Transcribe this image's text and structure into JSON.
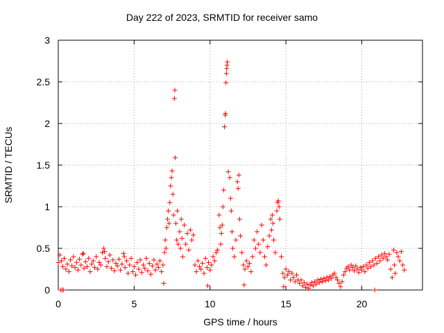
{
  "chart_data": {
    "type": "scatter",
    "title": "Day 222 of 2023, SRMTID for receiver samo",
    "xlabel": "GPS time / hours",
    "ylabel": "SRMTID / TECUs",
    "xlim": [
      0,
      24
    ],
    "ylim": [
      0,
      3
    ],
    "x_ticks": [
      0,
      5,
      10,
      15,
      20
    ],
    "y_ticks": [
      0,
      0.5,
      1,
      1.5,
      2,
      2.5,
      3
    ],
    "y_tick_labels": [
      "0",
      "0.5",
      "1",
      "1.5",
      "2",
      "2.5",
      "3"
    ],
    "grid": true,
    "marker": "+",
    "series": [
      {
        "name": "SRMTID",
        "color": "#ff0000",
        "points": [
          [
            0.0,
            0.33
          ],
          [
            0.1,
            0.42
          ],
          [
            0.2,
            0.35
          ],
          [
            0.3,
            0.28
          ],
          [
            0.4,
            0.38
          ],
          [
            0.5,
            0.25
          ],
          [
            0.6,
            0.31
          ],
          [
            0.7,
            0.22
          ],
          [
            0.8,
            0.36
          ],
          [
            0.9,
            0.29
          ],
          [
            1.0,
            0.4
          ],
          [
            1.1,
            0.27
          ],
          [
            1.2,
            0.33
          ],
          [
            1.3,
            0.24
          ],
          [
            1.4,
            0.37
          ],
          [
            1.5,
            0.3
          ],
          [
            1.6,
            0.43
          ],
          [
            1.7,
            0.26
          ],
          [
            1.8,
            0.34
          ],
          [
            1.9,
            0.28
          ],
          [
            2.0,
            0.38
          ],
          [
            2.1,
            0.22
          ],
          [
            2.2,
            0.31
          ],
          [
            2.3,
            0.35
          ],
          [
            2.4,
            0.27
          ],
          [
            2.5,
            0.4
          ],
          [
            2.6,
            0.25
          ],
          [
            2.7,
            0.33
          ],
          [
            2.8,
            0.3
          ],
          [
            2.9,
            0.45
          ],
          [
            3.0,
            0.5
          ],
          [
            3.1,
            0.38
          ],
          [
            3.2,
            0.28
          ],
          [
            3.3,
            0.34
          ],
          [
            3.4,
            0.42
          ],
          [
            3.5,
            0.26
          ],
          [
            3.6,
            0.36
          ],
          [
            3.7,
            0.23
          ],
          [
            3.8,
            0.32
          ],
          [
            3.9,
            0.29
          ],
          [
            4.0,
            0.37
          ],
          [
            4.1,
            0.24
          ],
          [
            4.2,
            0.31
          ],
          [
            4.3,
            0.44
          ],
          [
            4.4,
            0.27
          ],
          [
            4.5,
            0.35
          ],
          [
            4.6,
            0.2
          ],
          [
            4.7,
            0.3
          ],
          [
            4.8,
            0.38
          ],
          [
            4.9,
            0.22
          ],
          [
            5.0,
            0.28
          ],
          [
            5.1,
            0.18
          ],
          [
            5.2,
            0.33
          ],
          [
            5.3,
            0.25
          ],
          [
            5.4,
            0.36
          ],
          [
            5.5,
            0.21
          ],
          [
            5.6,
            0.3
          ],
          [
            5.7,
            0.26
          ],
          [
            5.8,
            0.38
          ],
          [
            5.9,
            0.23
          ],
          [
            6.0,
            0.32
          ],
          [
            6.1,
            0.19
          ],
          [
            6.2,
            0.29
          ],
          [
            6.3,
            0.36
          ],
          [
            6.4,
            0.24
          ],
          [
            6.5,
            0.31
          ],
          [
            6.6,
            0.27
          ],
          [
            6.7,
            0.35
          ],
          [
            6.8,
            0.22
          ],
          [
            6.9,
            0.3
          ],
          [
            7.0,
            0.45
          ],
          [
            7.05,
            0.6
          ],
          [
            7.1,
            0.5
          ],
          [
            7.15,
            0.75
          ],
          [
            7.2,
            0.85
          ],
          [
            7.25,
            0.95
          ],
          [
            7.3,
            0.8
          ],
          [
            7.35,
            1.05
          ],
          [
            7.4,
            1.25
          ],
          [
            7.45,
            1.35
          ],
          [
            7.5,
            1.43
          ],
          [
            7.55,
            1.15
          ],
          [
            7.6,
            0.9
          ],
          [
            7.65,
            2.3
          ],
          [
            7.68,
            2.4
          ],
          [
            7.7,
            1.59
          ],
          [
            7.75,
            0.8
          ],
          [
            7.8,
            0.6
          ],
          [
            7.85,
            0.95
          ],
          [
            7.9,
            0.55
          ],
          [
            8.0,
            0.7
          ],
          [
            8.05,
            0.5
          ],
          [
            8.1,
            0.85
          ],
          [
            8.15,
            0.62
          ],
          [
            8.2,
            0.4
          ],
          [
            8.3,
            0.78
          ],
          [
            8.4,
            0.55
          ],
          [
            8.5,
            0.68
          ],
          [
            8.6,
            0.48
          ],
          [
            8.7,
            0.72
          ],
          [
            8.8,
            0.6
          ],
          [
            8.9,
            0.66
          ],
          [
            9.0,
            0.3
          ],
          [
            9.1,
            0.22
          ],
          [
            9.2,
            0.35
          ],
          [
            9.3,
            0.28
          ],
          [
            9.4,
            0.25
          ],
          [
            9.5,
            0.32
          ],
          [
            9.6,
            0.2
          ],
          [
            9.7,
            0.38
          ],
          [
            9.8,
            0.27
          ],
          [
            9.9,
            0.33
          ],
          [
            10.0,
            0.24
          ],
          [
            10.1,
            0.3
          ],
          [
            10.2,
            0.4
          ],
          [
            10.3,
            0.35
          ],
          [
            10.4,
            0.45
          ],
          [
            10.5,
            0.48
          ],
          [
            10.6,
            0.9
          ],
          [
            10.65,
            0.75
          ],
          [
            10.7,
            0.55
          ],
          [
            10.75,
            0.68
          ],
          [
            10.8,
            0.78
          ],
          [
            10.85,
            1.0
          ],
          [
            10.9,
            1.2
          ],
          [
            10.95,
            1.96
          ],
          [
            11.0,
            2.1
          ],
          [
            11.02,
            2.12
          ],
          [
            11.05,
            2.49
          ],
          [
            11.08,
            2.6
          ],
          [
            11.1,
            2.66
          ],
          [
            11.12,
            2.7
          ],
          [
            11.14,
            2.74
          ],
          [
            11.2,
            1.42
          ],
          [
            11.3,
            1.35
          ],
          [
            11.35,
            1.1
          ],
          [
            11.4,
            0.95
          ],
          [
            11.45,
            0.7
          ],
          [
            11.5,
            0.5
          ],
          [
            11.6,
            0.4
          ],
          [
            11.7,
            0.6
          ],
          [
            11.8,
            1.3
          ],
          [
            11.85,
            1.22
          ],
          [
            11.9,
            1.38
          ],
          [
            11.95,
            0.85
          ],
          [
            12.0,
            0.65
          ],
          [
            12.1,
            0.45
          ],
          [
            12.2,
            0.3
          ],
          [
            12.3,
            0.25
          ],
          [
            12.4,
            0.35
          ],
          [
            12.5,
            0.28
          ],
          [
            12.6,
            0.32
          ],
          [
            12.7,
            0.22
          ],
          [
            12.8,
            0.4
          ],
          [
            12.9,
            0.6
          ],
          [
            13.0,
            0.5
          ],
          [
            13.1,
            0.7
          ],
          [
            13.2,
            0.55
          ],
          [
            13.3,
            0.45
          ],
          [
            13.4,
            0.78
          ],
          [
            13.5,
            0.6
          ],
          [
            13.6,
            0.4
          ],
          [
            13.7,
            0.3
          ],
          [
            13.8,
            0.52
          ],
          [
            13.9,
            0.65
          ],
          [
            14.0,
            0.85
          ],
          [
            14.05,
            0.72
          ],
          [
            14.1,
            0.9
          ],
          [
            14.15,
            0.8
          ],
          [
            14.2,
            0.6
          ],
          [
            14.3,
            0.45
          ],
          [
            14.4,
            0.95
          ],
          [
            14.45,
            1.05
          ],
          [
            14.5,
            1.07
          ],
          [
            14.55,
            1.0
          ],
          [
            14.6,
            0.85
          ],
          [
            14.7,
            0.4
          ],
          [
            14.8,
            0.2
          ],
          [
            14.9,
            0.15
          ],
          [
            15.0,
            0.25
          ],
          [
            15.1,
            0.18
          ],
          [
            15.2,
            0.22
          ],
          [
            15.3,
            0.12
          ],
          [
            15.4,
            0.2
          ],
          [
            15.5,
            0.15
          ],
          [
            15.6,
            0.1
          ],
          [
            15.7,
            0.18
          ],
          [
            15.8,
            0.12
          ],
          [
            15.9,
            0.08
          ],
          [
            16.0,
            0.12
          ],
          [
            16.1,
            0.05
          ],
          [
            16.2,
            0.09
          ],
          [
            16.3,
            0.03
          ],
          [
            16.4,
            0.07
          ],
          [
            16.5,
            0.02
          ],
          [
            16.6,
            0.06
          ],
          [
            16.7,
            0.09
          ],
          [
            16.8,
            0.05
          ],
          [
            16.9,
            0.1
          ],
          [
            17.0,
            0.07
          ],
          [
            17.1,
            0.12
          ],
          [
            17.2,
            0.09
          ],
          [
            17.3,
            0.13
          ],
          [
            17.4,
            0.1
          ],
          [
            17.5,
            0.14
          ],
          [
            17.6,
            0.11
          ],
          [
            17.7,
            0.15
          ],
          [
            17.8,
            0.12
          ],
          [
            17.9,
            0.16
          ],
          [
            18.0,
            0.14
          ],
          [
            18.1,
            0.18
          ],
          [
            18.2,
            0.2
          ],
          [
            18.3,
            0.15
          ],
          [
            18.4,
            0.12
          ],
          [
            18.5,
            0.08
          ],
          [
            18.6,
            0.04
          ],
          [
            18.7,
            0.1
          ],
          [
            18.8,
            0.18
          ],
          [
            18.9,
            0.22
          ],
          [
            19.0,
            0.26
          ],
          [
            19.1,
            0.28
          ],
          [
            19.2,
            0.24
          ],
          [
            19.3,
            0.3
          ],
          [
            19.4,
            0.27
          ],
          [
            19.5,
            0.23
          ],
          [
            19.6,
            0.29
          ],
          [
            19.7,
            0.25
          ],
          [
            19.8,
            0.21
          ],
          [
            19.9,
            0.27
          ],
          [
            20.0,
            0.24
          ],
          [
            20.1,
            0.28
          ],
          [
            20.2,
            0.22
          ],
          [
            20.3,
            0.3
          ],
          [
            20.4,
            0.26
          ],
          [
            20.5,
            0.33
          ],
          [
            20.6,
            0.28
          ],
          [
            20.7,
            0.35
          ],
          [
            20.8,
            0.3
          ],
          [
            20.85,
            0.0
          ],
          [
            20.9,
            0.38
          ],
          [
            21.0,
            0.32
          ],
          [
            21.1,
            0.4
          ],
          [
            21.2,
            0.35
          ],
          [
            21.3,
            0.42
          ],
          [
            21.4,
            0.38
          ],
          [
            21.5,
            0.44
          ],
          [
            21.6,
            0.4
          ],
          [
            21.7,
            0.36
          ],
          [
            21.8,
            0.43
          ],
          [
            21.9,
            0.25
          ],
          [
            22.0,
            0.15
          ],
          [
            22.1,
            0.48
          ],
          [
            22.15,
            0.3
          ],
          [
            22.2,
            0.2
          ],
          [
            22.3,
            0.45
          ],
          [
            22.4,
            0.4
          ],
          [
            22.5,
            0.35
          ],
          [
            22.6,
            0.46
          ],
          [
            22.7,
            0.3
          ],
          [
            22.8,
            0.24
          ],
          [
            0.15,
            0.0
          ],
          [
            0.25,
            0.0
          ],
          [
            0.35,
            0.0
          ],
          [
            6.95,
            0.08
          ],
          [
            9.85,
            0.05
          ],
          [
            12.25,
            0.06
          ],
          [
            14.85,
            0.04
          ],
          [
            3.05,
            0.46
          ],
          [
            1.65,
            0.44
          ],
          [
            4.35,
            0.4
          ]
        ]
      }
    ]
  }
}
